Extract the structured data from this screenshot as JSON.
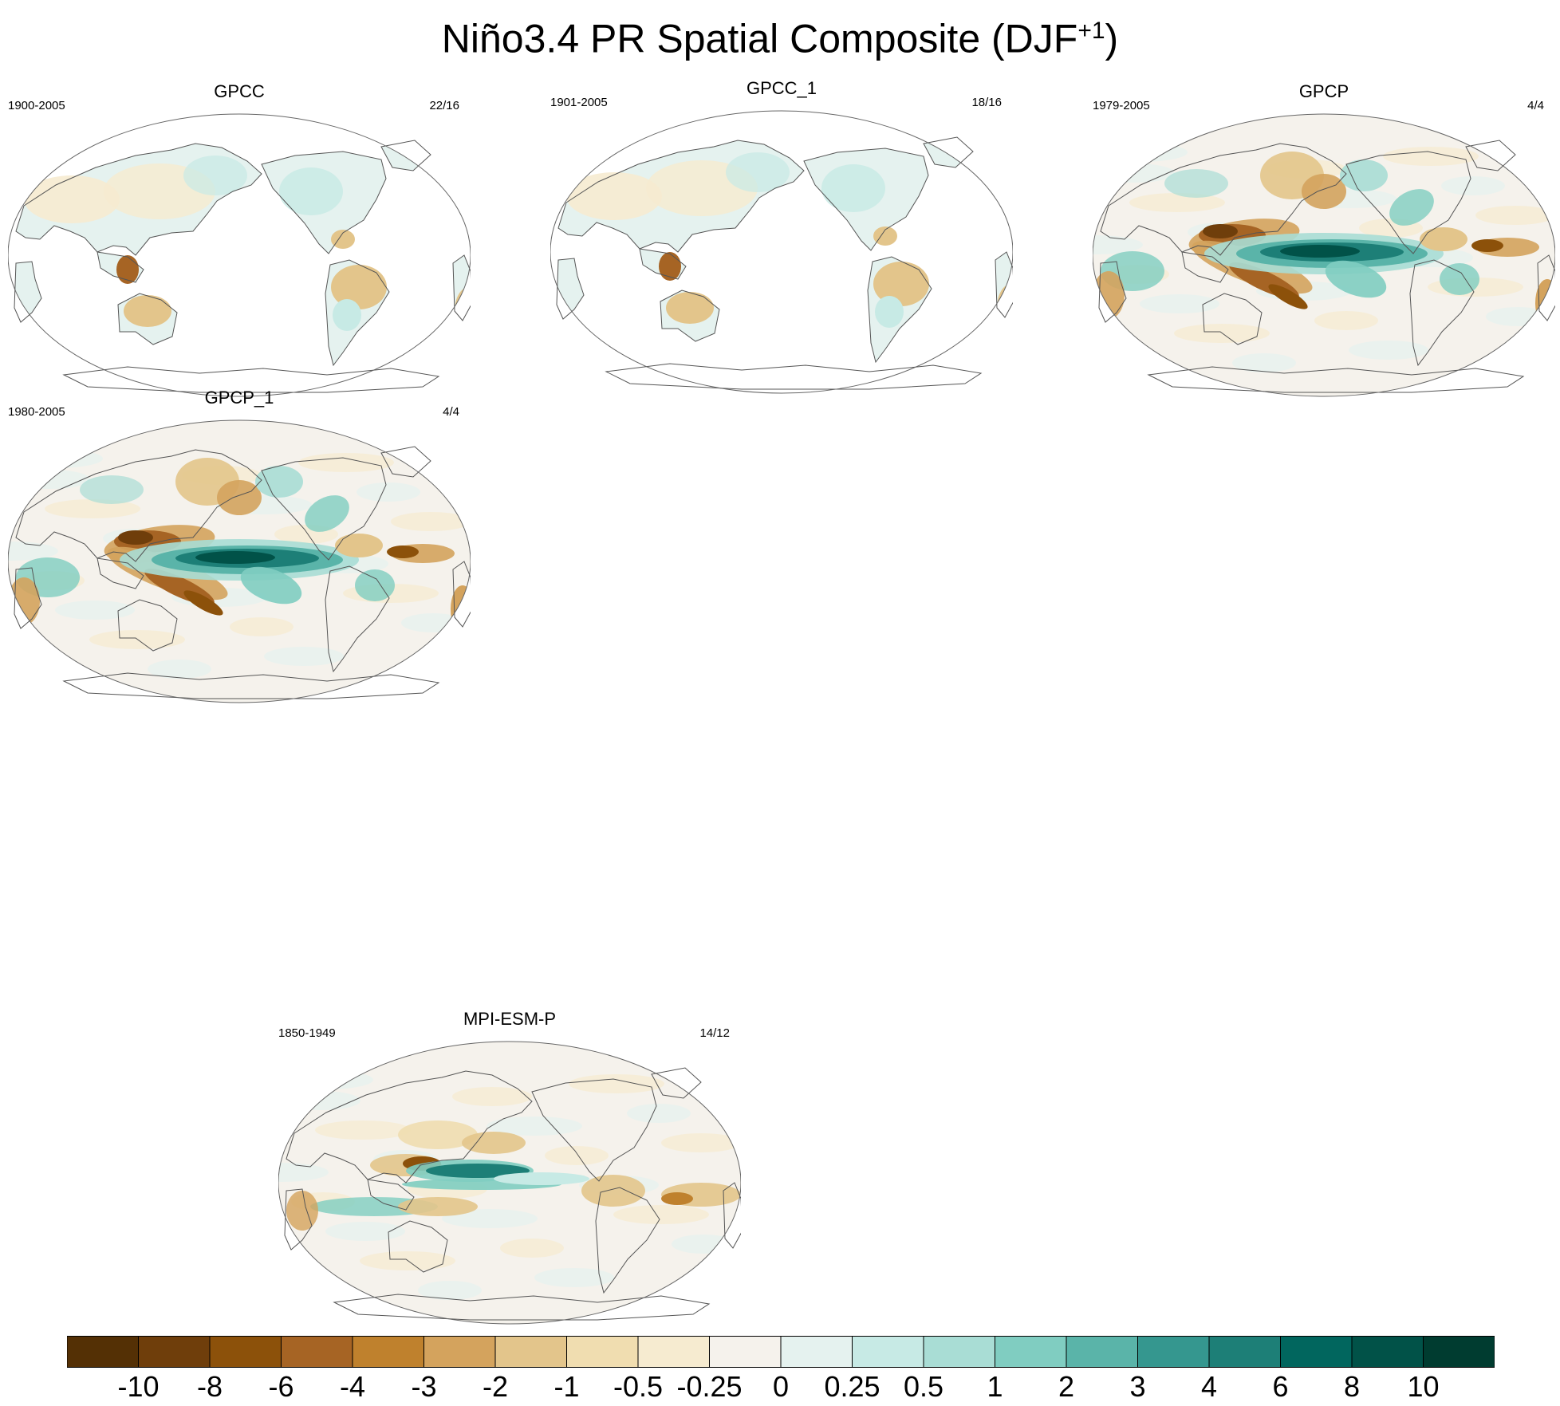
{
  "title": {
    "main": "Niño3.4 PR Spatial Composite (DJF",
    "superscript": "+1",
    "close": ")"
  },
  "panels": [
    {
      "id": "gpcc",
      "name": "GPCC",
      "years": "1900-2005",
      "count": "22/16",
      "style": "land"
    },
    {
      "id": "gpcc1",
      "name": "GPCC_1",
      "years": "1901-2005",
      "count": "18/16",
      "style": "land"
    },
    {
      "id": "gpcp",
      "name": "GPCP",
      "years": "1979-2005",
      "count": "4/4",
      "style": "global"
    },
    {
      "id": "gpcp1",
      "name": "GPCP_1",
      "years": "1980-2005",
      "count": "4/4",
      "style": "global"
    },
    {
      "id": "mpi",
      "name": "MPI-ESM-P",
      "years": "1850-1949",
      "count": "14/12",
      "style": "model"
    }
  ],
  "colorbar": {
    "colors": [
      "#543005",
      "#6f3e0b",
      "#8c510a",
      "#a66424",
      "#bf812d",
      "#d4a35d",
      "#e3c58b",
      "#f0ddb0",
      "#f6ebd0",
      "#f5f2ec",
      "#e5f2ef",
      "#c7eae5",
      "#a9ddd5",
      "#80cdc1",
      "#5ab4a9",
      "#35978f",
      "#1d7f77",
      "#01665e",
      "#015248",
      "#003c30"
    ],
    "labels": [
      "-10",
      "-8",
      "-6",
      "-4",
      "-3",
      "-2",
      "-1",
      "-0.5",
      "-0.25",
      "0",
      "0.25",
      "0.5",
      "1",
      "2",
      "3",
      "4",
      "6",
      "8",
      "10"
    ]
  }
}
